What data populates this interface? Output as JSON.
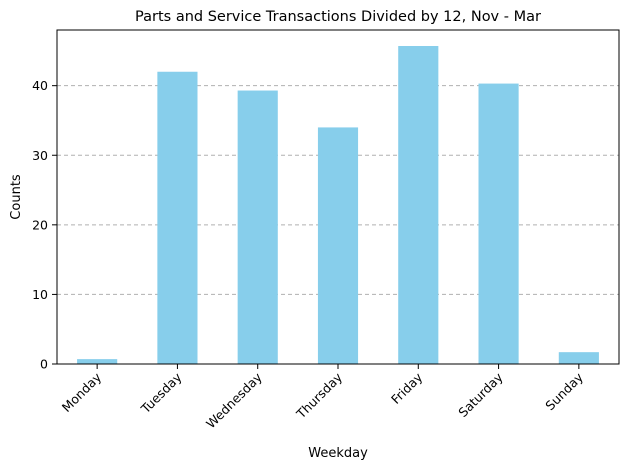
{
  "chart_data": {
    "type": "bar",
    "title": "Parts and Service Transactions Divided by 12, Nov - Mar",
    "xlabel": "Weekday",
    "ylabel": "Counts",
    "categories": [
      "Monday",
      "Tuesday",
      "Wednesday",
      "Thursday",
      "Friday",
      "Saturday",
      "Sunday"
    ],
    "values": [
      0.7,
      42.0,
      39.3,
      34.0,
      45.7,
      40.3,
      1.7
    ],
    "ylim": [
      0,
      48
    ],
    "yticks": [
      0,
      10,
      20,
      30,
      40
    ],
    "grid": "y-dashed",
    "legend": "none",
    "bar_color": "#87CEEB"
  }
}
